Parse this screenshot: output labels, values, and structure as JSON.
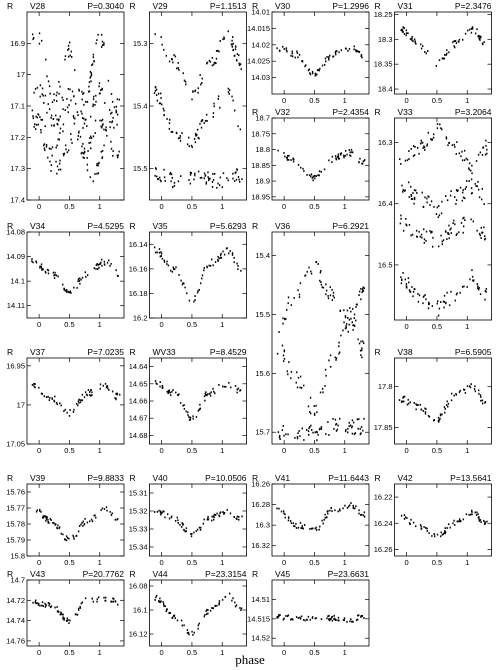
{
  "figure": {
    "xlabel": "phase",
    "band_label": "R"
  },
  "chart_data": [
    {
      "type": "scatter",
      "star": "V28",
      "period": "P=0.3040",
      "ylim": [
        16.8,
        17.4
      ],
      "yticks": [
        16.9,
        17,
        17.1,
        17.2,
        17.3,
        17.4
      ],
      "yticklabels": [
        "16.9",
        "17",
        "17.1",
        "17.2",
        "17.3",
        "17.4"
      ],
      "xlim": [
        -0.2,
        1.4
      ],
      "xticks": [
        0,
        0.5,
        1
      ],
      "xticklabels": [
        "0",
        "0.5",
        "1"
      ],
      "curves": [
        {
          "phase": [
            0,
            0.25,
            0.5,
            0.75,
            1.0,
            1.25
          ],
          "mag": [
            16.88,
            17.08,
            16.92,
            17.08,
            16.88,
            17.08
          ]
        },
        {
          "phase": [
            0,
            0.25,
            0.5,
            0.75,
            1.0,
            1.25
          ],
          "mag": [
            17.05,
            17.15,
            17.05,
            17.15,
            17.05,
            17.15
          ]
        },
        {
          "phase": [
            0,
            0.25,
            0.5,
            0.75,
            1.0,
            1.25
          ],
          "mag": [
            17.15,
            17.25,
            17.1,
            17.25,
            17.15,
            17.25
          ]
        },
        {
          "phase": [
            -0.1,
            0.25,
            0.6,
            0.9,
            1.25
          ],
          "mag": [
            17.12,
            17.3,
            17.2,
            17.32,
            17.12
          ]
        }
      ]
    },
    {
      "type": "scatter",
      "star": "V29",
      "period": "P=1.1513",
      "ylim": [
        15.25,
        15.55
      ],
      "yticks": [
        15.3,
        15.4,
        15.5
      ],
      "yticklabels": [
        "15.3",
        "15.4",
        "15.5"
      ],
      "xlim": [
        -0.2,
        1.4
      ],
      "xticks": [
        0,
        0.5,
        1
      ],
      "xticklabels": [
        "0",
        "0.5",
        "1"
      ],
      "curves": [
        {
          "phase": [
            -0.1,
            0.2,
            0.5,
            0.8,
            1.1,
            1.3
          ],
          "mag": [
            15.29,
            15.33,
            15.38,
            15.33,
            15.29,
            15.33
          ]
        },
        {
          "phase": [
            -0.1,
            0.2,
            0.5,
            0.8,
            1.1,
            1.3
          ],
          "mag": [
            15.38,
            15.44,
            15.46,
            15.41,
            15.38,
            15.44
          ]
        },
        {
          "phase": [
            -0.1,
            0.3,
            0.6,
            0.9,
            1.3
          ],
          "mag": [
            15.51,
            15.52,
            15.51,
            15.52,
            15.51
          ]
        }
      ]
    },
    {
      "type": "scatter",
      "star": "V30",
      "period": "P=1.2996",
      "ylim": [
        14.01,
        14.035
      ],
      "yticks": [
        14.01,
        14.015,
        14.02,
        14.025,
        14.03
      ],
      "yticklabels": [
        "14.01",
        "14.015",
        "14.02",
        "14.025",
        "14.03"
      ],
      "xlim": [
        -0.2,
        1.4
      ],
      "xticks": [
        0,
        0.5,
        1
      ],
      "xticklabels": [
        "0",
        "0.5",
        "1"
      ],
      "curves": [
        {
          "phase": [
            -0.1,
            0.2,
            0.5,
            0.8,
            1.1,
            1.3
          ],
          "mag": [
            14.021,
            14.023,
            14.029,
            14.023,
            14.021,
            14.023
          ]
        }
      ]
    },
    {
      "type": "scatter",
      "star": "V31",
      "period": "P=2.3476",
      "ylim": [
        18.245,
        18.41
      ],
      "yticks": [
        18.25,
        18.3,
        18.35,
        18.4
      ],
      "yticklabels": [
        "18.25",
        "18.3",
        "18.35",
        "18.4"
      ],
      "xlim": [
        -0.2,
        1.4
      ],
      "xticks": [
        0,
        0.5,
        1
      ],
      "xticklabels": [
        "0",
        "0.5",
        "1"
      ],
      "curves": [
        {
          "phase": [
            -0.1,
            0.2,
            0.5,
            0.8,
            1.1,
            1.3
          ],
          "mag": [
            18.28,
            18.31,
            18.35,
            18.31,
            18.28,
            18.31
          ]
        }
      ]
    },
    {
      "type": "scatter",
      "star": "V32",
      "period": "P=2.4354",
      "ylim": [
        18.7,
        18.96
      ],
      "yticks": [
        18.7,
        18.75,
        18.8,
        18.85,
        18.9,
        18.95
      ],
      "yticklabels": [
        "18.7",
        "18.75",
        "18.8",
        "18.85",
        "18.9",
        "18.95"
      ],
      "xlim": [
        -0.2,
        1.4
      ],
      "xticks": [
        0,
        0.5,
        1
      ],
      "xticklabels": [
        "0",
        "0.5",
        "1"
      ],
      "curves": [
        {
          "phase": [
            -0.1,
            0.2,
            0.5,
            0.8,
            1.1,
            1.3
          ],
          "mag": [
            18.81,
            18.84,
            18.89,
            18.83,
            18.81,
            18.84
          ]
        }
      ]
    },
    {
      "type": "scatter",
      "star": "V33",
      "period": "P=3.2064",
      "ylim": [
        16.26,
        16.59
      ],
      "yticks": [
        16.3,
        16.4,
        16.5
      ],
      "yticklabels": [
        "16.3",
        "16.4",
        "16.5"
      ],
      "xlim": [
        -0.2,
        1.4
      ],
      "xticks": [
        0,
        0.5,
        1
      ],
      "xticklabels": [
        "0",
        "0.5",
        "1"
      ],
      "curves": [
        {
          "phase": [
            -0.1,
            0.2,
            0.5,
            0.8,
            1.1,
            1.3
          ],
          "mag": [
            16.34,
            16.31,
            16.28,
            16.31,
            16.34,
            16.31
          ]
        },
        {
          "phase": [
            -0.1,
            0.2,
            0.5,
            0.8,
            1.1,
            1.3
          ],
          "mag": [
            16.37,
            16.39,
            16.41,
            16.39,
            16.37,
            16.39
          ]
        },
        {
          "phase": [
            -0.1,
            0.2,
            0.5,
            0.8,
            1.1,
            1.3
          ],
          "mag": [
            16.43,
            16.45,
            16.46,
            16.44,
            16.43,
            16.45
          ]
        },
        {
          "phase": [
            -0.1,
            0.2,
            0.5,
            0.8,
            1.1,
            1.3
          ],
          "mag": [
            16.52,
            16.55,
            16.57,
            16.55,
            16.52,
            16.55
          ]
        }
      ]
    },
    {
      "type": "scatter",
      "star": "V34",
      "period": "P=4.5295",
      "ylim": [
        14.08,
        14.115
      ],
      "yticks": [
        14.08,
        14.09,
        14.1,
        14.11
      ],
      "yticklabels": [
        "14.08",
        "14.09",
        "14.1",
        "14.11"
      ],
      "xlim": [
        -0.2,
        1.4
      ],
      "xticks": [
        0,
        0.5,
        1
      ],
      "xticklabels": [
        "0",
        "0.5",
        "1"
      ],
      "curves": [
        {
          "phase": [
            -0.1,
            0.2,
            0.5,
            0.8,
            1.1,
            1.3
          ],
          "mag": [
            14.092,
            14.097,
            14.104,
            14.097,
            14.092,
            14.097
          ]
        }
      ]
    },
    {
      "type": "scatter",
      "star": "V35",
      "period": "P=5.6293",
      "ylim": [
        16.13,
        16.2
      ],
      "yticks": [
        16.14,
        16.16,
        16.18,
        16.2
      ],
      "yticklabels": [
        "16.14",
        "16.16",
        "16.18",
        "16.2"
      ],
      "xlim": [
        -0.2,
        1.4
      ],
      "xticks": [
        0,
        0.5,
        1
      ],
      "xticklabels": [
        "0",
        "0.5",
        "1"
      ],
      "curves": [
        {
          "phase": [
            -0.1,
            0.2,
            0.5,
            0.8,
            1.1,
            1.3
          ],
          "mag": [
            16.145,
            16.16,
            16.185,
            16.155,
            16.145,
            16.16
          ]
        }
      ]
    },
    {
      "type": "scatter",
      "star": "V36",
      "period": "P=6.2921",
      "ylim": [
        15.36,
        15.72
      ],
      "yticks": [
        15.4,
        15.5,
        15.6,
        15.7
      ],
      "yticklabels": [
        "15.4",
        "15.5",
        "15.6",
        "15.7"
      ],
      "xlim": [
        -0.2,
        1.4
      ],
      "xticks": [
        0,
        0.5,
        1
      ],
      "xticklabels": [
        "0",
        "0.5",
        "1"
      ],
      "curves": [
        {
          "phase": [
            -0.1,
            0.2,
            0.5,
            0.8,
            1.1,
            1.3
          ],
          "mag": [
            15.56,
            15.61,
            15.66,
            15.58,
            15.5,
            15.56
          ]
        },
        {
          "phase": [
            -0.1,
            0.2,
            0.5,
            0.8,
            1.1,
            1.3
          ],
          "mag": [
            15.52,
            15.46,
            15.42,
            15.47,
            15.52,
            15.46
          ]
        },
        {
          "phase": [
            0.1,
            0.5,
            0.9
          ],
          "mag": [
            15.7,
            15.7,
            15.69
          ]
        }
      ]
    },
    {
      "type": "scatter",
      "star": "V37",
      "period": "P=7.0235",
      "ylim": [
        16.94,
        17.05
      ],
      "yticks": [
        16.95,
        17,
        17.05
      ],
      "yticklabels": [
        "16.95",
        "17",
        "17.05"
      ],
      "xlim": [
        -0.2,
        1.4
      ],
      "xticks": [
        0,
        0.5,
        1
      ],
      "xticklabels": [
        "0",
        "0.5",
        "1"
      ],
      "curves": [
        {
          "phase": [
            -0.1,
            0.2,
            0.5,
            0.8,
            1.1,
            1.3
          ],
          "mag": [
            16.975,
            16.99,
            17.01,
            16.985,
            16.975,
            16.99
          ]
        }
      ]
    },
    {
      "type": "scatter",
      "star": "WV33",
      "period": "P=8.4529",
      "ylim": [
        14.635,
        14.685
      ],
      "yticks": [
        14.64,
        14.65,
        14.66,
        14.67,
        14.68
      ],
      "yticklabels": [
        "14.64",
        "14.65",
        "14.66",
        "14.67",
        "14.68"
      ],
      "xlim": [
        -0.2,
        1.4
      ],
      "xticks": [
        0,
        0.5,
        1
      ],
      "xticklabels": [
        "0",
        "0.5",
        "1"
      ],
      "curves": [
        {
          "phase": [
            -0.1,
            0.2,
            0.5,
            0.8,
            1.1,
            1.3
          ],
          "mag": [
            14.65,
            14.655,
            14.67,
            14.655,
            14.65,
            14.655
          ]
        }
      ]
    },
    {
      "type": "scatter",
      "star": "V38",
      "period": "P=6.5905",
      "ylim": [
        17.765,
        17.87
      ],
      "yticks": [
        17.8,
        17.85
      ],
      "yticklabels": [
        "17.8",
        "17.85"
      ],
      "xlim": [
        -0.2,
        1.4
      ],
      "xticks": [
        0,
        0.5,
        1
      ],
      "xticklabels": [
        "0",
        "0.5",
        "1"
      ],
      "curves": [
        {
          "phase": [
            -0.1,
            0.2,
            0.5,
            0.8,
            1.1,
            1.3
          ],
          "mag": [
            17.815,
            17.825,
            17.84,
            17.81,
            17.8,
            17.82
          ]
        }
      ]
    },
    {
      "type": "scatter",
      "star": "V39",
      "period": "P=9.8833",
      "ylim": [
        15.755,
        15.8
      ],
      "yticks": [
        15.76,
        15.77,
        15.78,
        15.79,
        15.8
      ],
      "yticklabels": [
        "15.76",
        "15.77",
        "15.78",
        "15.79",
        "15.8"
      ],
      "xlim": [
        -0.2,
        1.4
      ],
      "xticks": [
        0,
        0.5,
        1
      ],
      "xticklabels": [
        "0",
        "0.5",
        "1"
      ],
      "curves": [
        {
          "phase": [
            -0.1,
            0.2,
            0.5,
            0.8,
            1.1,
            1.3
          ],
          "mag": [
            15.77,
            15.778,
            15.79,
            15.778,
            15.77,
            15.778
          ]
        }
      ]
    },
    {
      "type": "scatter",
      "star": "V40",
      "period": "P=10.0506",
      "ylim": [
        15.305,
        15.345
      ],
      "yticks": [
        15.31,
        15.32,
        15.33,
        15.34
      ],
      "yticklabels": [
        "15.31",
        "15.32",
        "15.33",
        "15.34"
      ],
      "xlim": [
        -0.2,
        1.4
      ],
      "xticks": [
        0,
        0.5,
        1
      ],
      "xticklabels": [
        "0",
        "0.5",
        "1"
      ],
      "curves": [
        {
          "phase": [
            -0.1,
            0.2,
            0.5,
            0.8,
            1.1,
            1.3
          ],
          "mag": [
            15.32,
            15.324,
            15.333,
            15.324,
            15.32,
            15.324
          ]
        }
      ]
    },
    {
      "type": "scatter",
      "star": "V41",
      "period": "P=11.6443",
      "ylim": [
        16.26,
        16.33
      ],
      "yticks": [
        16.26,
        16.28,
        16.3,
        16.32
      ],
      "yticklabels": [
        "16.26",
        "16.28",
        "16.3",
        "16.32"
      ],
      "xlim": [
        -0.2,
        1.4
      ],
      "xticks": [
        0,
        0.5,
        1
      ],
      "xticklabels": [
        "0",
        "0.5",
        "1"
      ],
      "curves": [
        {
          "phase": [
            -0.1,
            0.2,
            0.5,
            0.8,
            1.1,
            1.3
          ],
          "mag": [
            16.285,
            16.3,
            16.305,
            16.285,
            16.28,
            16.29
          ]
        }
      ]
    },
    {
      "type": "scatter",
      "star": "V42",
      "period": "P=13.5641",
      "ylim": [
        16.21,
        16.265
      ],
      "yticks": [
        16.22,
        16.24,
        16.26
      ],
      "yticklabels": [
        "16.22",
        "16.24",
        "16.26"
      ],
      "xlim": [
        -0.2,
        1.4
      ],
      "xticks": [
        0,
        0.5,
        1
      ],
      "xticklabels": [
        "0",
        "0.5",
        "1"
      ],
      "curves": [
        {
          "phase": [
            -0.1,
            0.2,
            0.5,
            0.8,
            1.1,
            1.3
          ],
          "mag": [
            16.235,
            16.242,
            16.25,
            16.24,
            16.232,
            16.24
          ]
        }
      ]
    },
    {
      "type": "scatter",
      "star": "V43",
      "period": "P=20.7762",
      "ylim": [
        14.7,
        14.765
      ],
      "yticks": [
        14.7,
        14.72,
        14.74,
        14.76
      ],
      "yticklabels": [
        "14.7",
        "14.72",
        "14.74",
        "14.76"
      ],
      "xlim": [
        -0.2,
        1.4
      ],
      "xticks": [
        0,
        0.5,
        1
      ],
      "xticklabels": [
        "0",
        "0.5",
        "1"
      ],
      "curves": [
        {
          "phase": [
            -0.1,
            0.2,
            0.5,
            0.8,
            1.1,
            1.3
          ],
          "mag": [
            14.722,
            14.725,
            14.74,
            14.72,
            14.718,
            14.722
          ]
        }
      ]
    },
    {
      "type": "scatter",
      "star": "V44",
      "period": "P=23.3154",
      "ylim": [
        16.075,
        16.13
      ],
      "yticks": [
        16.08,
        16.1,
        16.12
      ],
      "yticklabels": [
        "16.08",
        "16.1",
        "16.12"
      ],
      "xlim": [
        -0.2,
        1.4
      ],
      "xticks": [
        0,
        0.5,
        1
      ],
      "xticklabels": [
        "0",
        "0.5",
        "1"
      ],
      "curves": [
        {
          "phase": [
            -0.1,
            0.2,
            0.5,
            0.8,
            1.1,
            1.3
          ],
          "mag": [
            16.09,
            16.105,
            16.12,
            16.1,
            16.088,
            16.1
          ]
        }
      ]
    },
    {
      "type": "scatter",
      "star": "V45",
      "period": "P=23.6631",
      "ylim": [
        14.505,
        14.522
      ],
      "yticks": [
        14.51,
        14.515,
        14.52
      ],
      "yticklabels": [
        "14.51",
        "14.515",
        "14.52"
      ],
      "xlim": [
        -0.2,
        1.4
      ],
      "xticks": [
        0,
        0.5,
        1
      ],
      "xticklabels": [
        "0",
        "0.5",
        "1"
      ],
      "curves": [
        {
          "phase": [
            -0.1,
            0.3,
            0.7,
            1.1,
            1.3
          ],
          "mag": [
            14.5145,
            14.515,
            14.5148,
            14.5152,
            14.5145
          ]
        }
      ]
    }
  ]
}
